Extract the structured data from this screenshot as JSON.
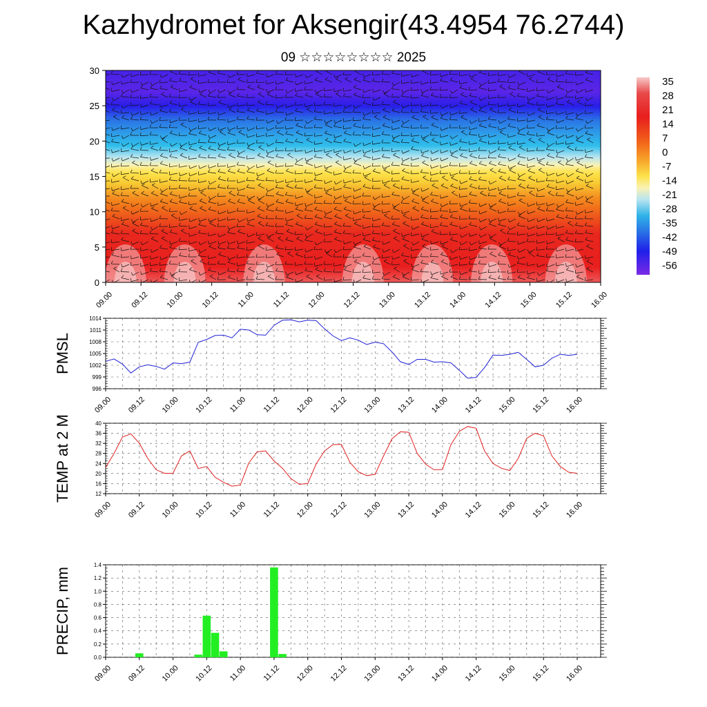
{
  "title": "Kazhydromet for Aksengir(43.4954 76.2744)",
  "subtitle": "09 ☆☆☆☆☆☆☆☆ 2025",
  "time_labels": [
    "09.00",
    "09.12",
    "10.00",
    "10.12",
    "11.00",
    "11.12",
    "12.00",
    "12.12",
    "13.00",
    "13.12",
    "14.00",
    "14.12",
    "15.00",
    "15.12",
    "16.00"
  ],
  "colors": {
    "pmsl_line": "#1f1fd6",
    "temp_line": "#e02020",
    "precip_bar": "#22ee22",
    "grid": "#555555"
  },
  "chart_data": [
    {
      "type": "heatmap",
      "name": "vertical-section",
      "x": [
        "09.00",
        "09.12",
        "10.00",
        "10.12",
        "11.00",
        "11.12",
        "12.00",
        "12.12",
        "13.00",
        "13.12",
        "14.00",
        "14.12",
        "15.00",
        "15.12",
        "16.00"
      ],
      "ylim": [
        0,
        30
      ],
      "yticks": [
        0,
        5,
        10,
        15,
        20,
        25,
        30
      ],
      "colorbar": {
        "labels": [
          "35",
          "28",
          "21",
          "14",
          "7",
          "0",
          "-7",
          "-14",
          "-21",
          "-28",
          "-35",
          "-42",
          "-49",
          "-56"
        ],
        "range": [
          -63,
          42
        ]
      },
      "temperature_profile": {
        "heights": [
          0,
          3,
          6,
          9,
          12,
          14,
          16,
          17,
          19,
          21,
          23,
          25,
          27,
          30
        ],
        "values": [
          30,
          22,
          16,
          10,
          4,
          -2,
          -10,
          -16,
          -26,
          -36,
          -45,
          -55,
          -60,
          -58
        ]
      }
    },
    {
      "type": "line",
      "name": "pmsl",
      "ylabel": "PMSL",
      "ylim": [
        996,
        1014
      ],
      "yticks": [
        996,
        999,
        1002,
        1005,
        1008,
        1011,
        1014
      ],
      "x_start": 0,
      "x_step": 3,
      "values": [
        1003.0,
        1003.6,
        1002.3,
        1000.0,
        1001.6,
        1002.1,
        1001.7,
        1001.0,
        1002.6,
        1002.4,
        1002.8,
        1007.9,
        1008.6,
        1009.6,
        1009.7,
        1009.0,
        1011.2,
        1011.0,
        1009.8,
        1009.7,
        1012.2,
        1013.5,
        1013.6,
        1013.1,
        1013.5,
        1013.4,
        1011.3,
        1009.5,
        1008.3,
        1009.0,
        1008.4,
        1007.3,
        1007.9,
        1007.5,
        1005.4,
        1002.9,
        1002.2,
        1003.5,
        1003.5,
        1002.8,
        1002.9,
        1002.6,
        1000.7,
        998.7,
        998.9,
        1001.4,
        1004.6,
        1004.5,
        1004.8,
        1005.3,
        1003.5,
        1001.6,
        1002.0,
        1003.8,
        1004.8,
        1004.5,
        1004.8
      ]
    },
    {
      "type": "line",
      "name": "temp-2m",
      "ylabel": "TEMP at 2 M",
      "ylim": [
        12,
        40
      ],
      "yticks": [
        12,
        16,
        20,
        24,
        28,
        32,
        36,
        40
      ],
      "x_start": 0,
      "x_step": 3,
      "values": [
        22.4,
        28.0,
        34.5,
        35.8,
        32.0,
        26.0,
        21.5,
        20.1,
        20.1,
        27.0,
        29.0,
        22.0,
        22.8,
        18.5,
        16.5,
        15.0,
        15.4,
        24.2,
        28.6,
        29.0,
        25.0,
        22.1,
        18.0,
        15.7,
        16.0,
        23.8,
        29.0,
        31.5,
        31.6,
        24.5,
        20.7,
        19.2,
        19.7,
        27.0,
        33.8,
        36.6,
        36.4,
        28.0,
        23.7,
        21.5,
        21.6,
        31.5,
        36.8,
        38.7,
        38.0,
        29.0,
        24.0,
        22.1,
        21.2,
        26.0,
        34.0,
        36.0,
        35.0,
        27.0,
        22.8,
        20.5,
        20.1
      ]
    },
    {
      "type": "bar",
      "name": "precip",
      "ylabel": "PRECIP, mm",
      "ylim": [
        0,
        1.4
      ],
      "yticks": [
        "0.0",
        "0.2",
        "0.4",
        "0.6",
        "0.8",
        "1.0",
        "1.2",
        "1.4"
      ],
      "x_start": 0,
      "x_step": 3,
      "values": [
        0,
        0,
        0,
        0,
        0.06,
        0,
        0,
        0,
        0,
        0,
        0,
        0.04,
        0.63,
        0.37,
        0.09,
        0,
        0,
        0,
        0,
        0,
        1.36,
        0.05,
        0,
        0,
        0,
        0,
        0,
        0,
        0,
        0,
        0,
        0,
        0,
        0,
        0,
        0,
        0,
        0,
        0,
        0,
        0,
        0,
        0,
        0,
        0,
        0,
        0,
        0,
        0,
        0,
        0,
        0,
        0,
        0,
        0,
        0,
        0
      ]
    }
  ]
}
